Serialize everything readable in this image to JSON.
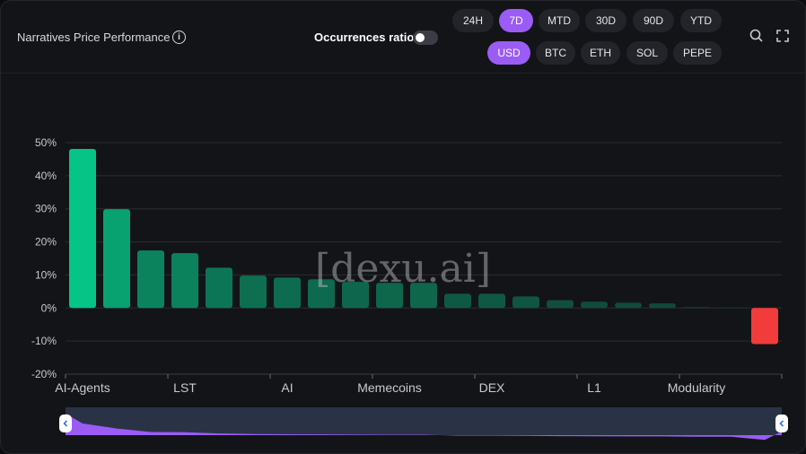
{
  "header": {
    "title": "Narratives Price Performance",
    "occurrences_label": "Occurrences ratio",
    "occurrences_on": false
  },
  "periods": [
    {
      "label": "24H",
      "active": false
    },
    {
      "label": "7D",
      "active": true
    },
    {
      "label": "MTD",
      "active": false
    },
    {
      "label": "30D",
      "active": false
    },
    {
      "label": "90D",
      "active": false
    },
    {
      "label": "YTD",
      "active": false
    }
  ],
  "currencies": [
    {
      "label": "USD",
      "active": true
    },
    {
      "label": "BTC",
      "active": false
    },
    {
      "label": "ETH",
      "active": false
    },
    {
      "label": "SOL",
      "active": false
    },
    {
      "label": "PEPE",
      "active": false
    }
  ],
  "watermark": "[dexu.ai]",
  "colors": {
    "accent": "#9b5cf6",
    "positive": "#05c486",
    "negative": "#f23b3b"
  },
  "chart_data": {
    "type": "bar",
    "title": "Narratives Price Performance",
    "ylabel": "",
    "xlabel": "",
    "ylim": [
      -20,
      50
    ],
    "yticks": [
      "50%",
      "40%",
      "30%",
      "20%",
      "10%",
      "0%",
      "-10%",
      "-20%"
    ],
    "ytick_values": [
      50,
      40,
      30,
      20,
      10,
      0,
      -10,
      -20
    ],
    "grid": true,
    "values": [
      48.1,
      29.9,
      17.4,
      16.6,
      12.2,
      9.8,
      9.2,
      8.7,
      7.9,
      7.6,
      7.6,
      4.3,
      4.3,
      3.5,
      2.4,
      1.9,
      1.6,
      1.4,
      0.3,
      0.2,
      -10.9
    ],
    "xtick_labels": [
      {
        "index": 0,
        "label": "AI-Agents"
      },
      {
        "index": 3,
        "label": "LST"
      },
      {
        "index": 6,
        "label": "AI"
      },
      {
        "index": 9,
        "label": "Memecoins"
      },
      {
        "index": 12,
        "label": "DEX"
      },
      {
        "index": 15,
        "label": "L1"
      },
      {
        "index": 18,
        "label": "Modularity"
      }
    ]
  }
}
